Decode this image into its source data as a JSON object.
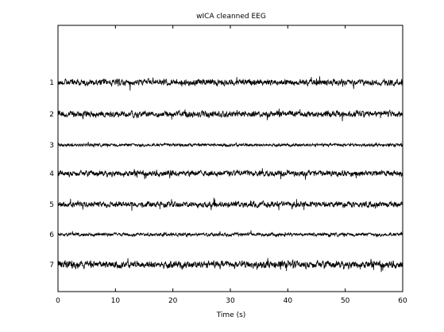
{
  "chart_data": {
    "type": "line",
    "title": "wICA cleanned EEG",
    "xlabel": "Time (s)",
    "ylabel": "",
    "xlim": [
      0,
      60
    ],
    "xticks": [
      0,
      10,
      20,
      30,
      40,
      50,
      60
    ],
    "channels": [
      "1",
      "2",
      "3",
      "4",
      "5",
      "6",
      "7"
    ],
    "grid": false,
    "legend": "none",
    "colors": {
      "trace": "#000000",
      "background": "#ffffff",
      "axes": "#000000"
    }
  }
}
